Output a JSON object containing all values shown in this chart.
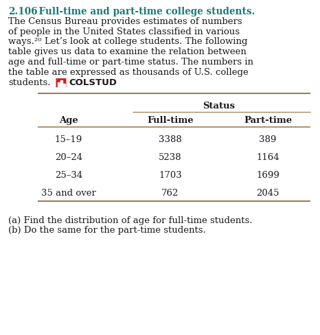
{
  "title_number": "2.106",
  "title_text": "  Full-time and part-time college students.",
  "body_lines": [
    "The Census Bureau provides estimates of numbers",
    "of people in the United States classified in various",
    "ways.²⁰ Let’s look at college students. The following",
    "table gives us data to examine the relation between",
    "age and full-time or part-time status. The numbers in",
    "the table are expressed as thousands of U.S. college",
    "students."
  ],
  "colstud_label": "COLSTUD",
  "status_header": "Status",
  "col_headers": [
    "Age",
    "Full-time",
    "Part-time"
  ],
  "rows": [
    [
      "15–19",
      "3388",
      "389"
    ],
    [
      "20–24",
      "5238",
      "1164"
    ],
    [
      "25–34",
      "1703",
      "1699"
    ],
    [
      "35 and over",
      "762",
      "2045"
    ]
  ],
  "questions": [
    "(a) Find the distribution of age for full-time students.",
    "(b) Do the same for the part-time students."
  ],
  "title_color": "#1a7a7a",
  "body_color": "#1a1a1a",
  "bg_color": "#ffffff",
  "icon_red": "#c0392b",
  "line_color": "#a08050",
  "title_fontsize": 9.8,
  "body_fontsize": 9.5,
  "table_fontsize": 9.5,
  "question_fontsize": 9.5,
  "fig_width": 4.66,
  "fig_height": 4.88,
  "dpi": 100
}
